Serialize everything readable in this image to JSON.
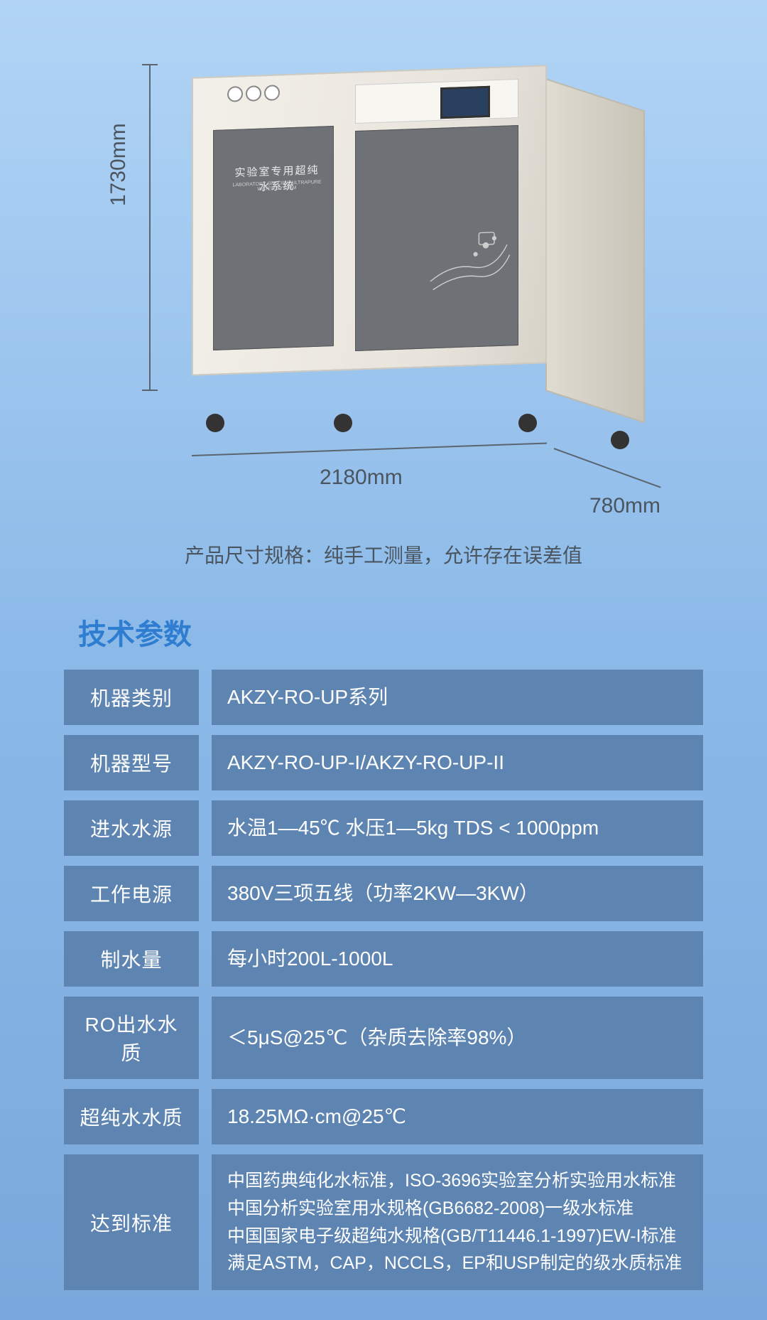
{
  "product": {
    "dimensions": {
      "height_label": "1730mm",
      "width_label": "2180mm",
      "depth_label": "780mm"
    },
    "note": "产品尺寸规格：纯手工测量，允许存在误差值",
    "panel_text_top": "实验室专用超纯水系统",
    "panel_text_sub": "LABORATORY SPECIFIC ULTRAPURE WATER SYSTEM"
  },
  "section_title": "技术参数",
  "specs": [
    {
      "label": "机器类别",
      "value": "AKZY-RO-UP系列"
    },
    {
      "label": "机器型号",
      "value": "AKZY-RO-UP-I/AKZY-RO-UP-II"
    },
    {
      "label": "进水水源",
      "value": "水温1—45℃  水压1—5kg   TDS < 1000ppm"
    },
    {
      "label": "工作电源",
      "value": "380V三项五线（功率2KW—3KW）"
    },
    {
      "label": "制水量",
      "value": "每小时200L-1000L"
    },
    {
      "label": "RO出水水质",
      "value": "＜5μS@25℃（杂质去除率98%）"
    },
    {
      "label": "超纯水水质",
      "value": "18.25MΩ·cm@25℃"
    },
    {
      "label": "达到标准",
      "value": "中国药典纯化水标准，ISO-3696实验室分析实验用水标准\n中国分析实验室用水规格(GB6682-2008)一级水标准\n中国国家电子级超纯水规格(GB/T11446.1-1997)EW-I标准\n满足ASTM，CAP，NCCLS，EP和USP制定的级水质标准",
      "multi": true
    }
  ],
  "colors": {
    "row_bg": "#5e85b2",
    "row_text": "#ffffff",
    "title_color": "#2f7dd1",
    "body_text": "#4a5560"
  }
}
